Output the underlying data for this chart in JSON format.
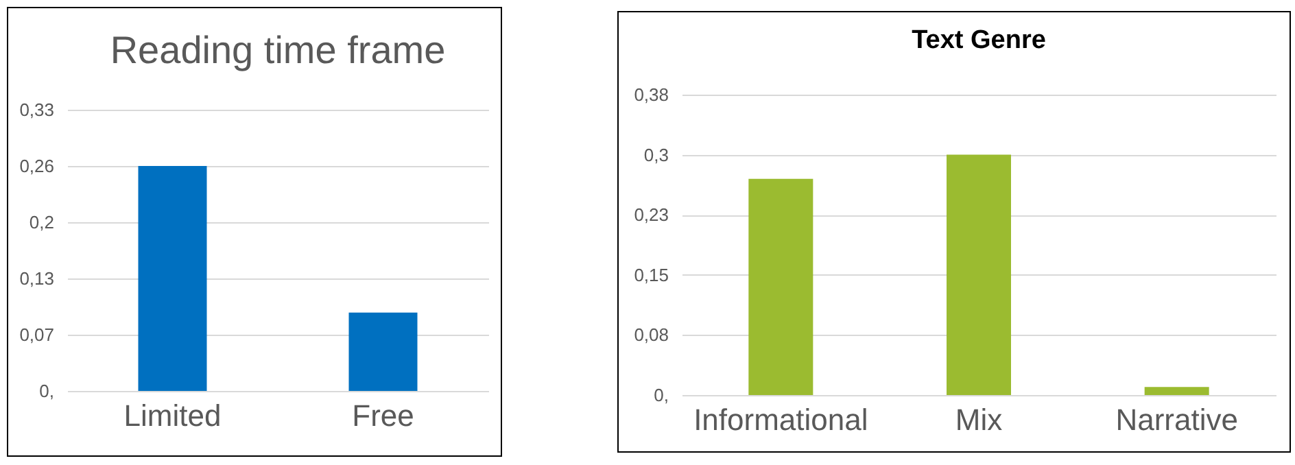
{
  "chart_data": [
    {
      "type": "bar",
      "title": "Reading time frame",
      "categories": [
        "Limited",
        "Free"
      ],
      "values": [
        0.264,
        0.092
      ],
      "color": "#0070c0",
      "ylim": [
        0,
        0.33
      ],
      "yticks": [
        {
          "value": 0,
          "label": "0,"
        },
        {
          "value": 0.066,
          "label": "0,07"
        },
        {
          "value": 0.132,
          "label": "0,13"
        },
        {
          "value": 0.198,
          "label": "0,2"
        },
        {
          "value": 0.264,
          "label": "0,26"
        },
        {
          "value": 0.33,
          "label": "0,33"
        }
      ],
      "grid": true
    },
    {
      "type": "bar",
      "title": "Text Genre",
      "categories": [
        "Informational",
        "Mix",
        "Narrative"
      ],
      "values": [
        0.27,
        0.3,
        0.01
      ],
      "color": "#9bbb30",
      "ylim": [
        0,
        0.375
      ],
      "yticks": [
        {
          "value": 0,
          "label": "0,"
        },
        {
          "value": 0.075,
          "label": "0,08"
        },
        {
          "value": 0.15,
          "label": "0,15"
        },
        {
          "value": 0.225,
          "label": "0,23"
        },
        {
          "value": 0.3,
          "label": "0,3"
        },
        {
          "value": 0.375,
          "label": "0,38"
        }
      ],
      "grid": true
    }
  ]
}
